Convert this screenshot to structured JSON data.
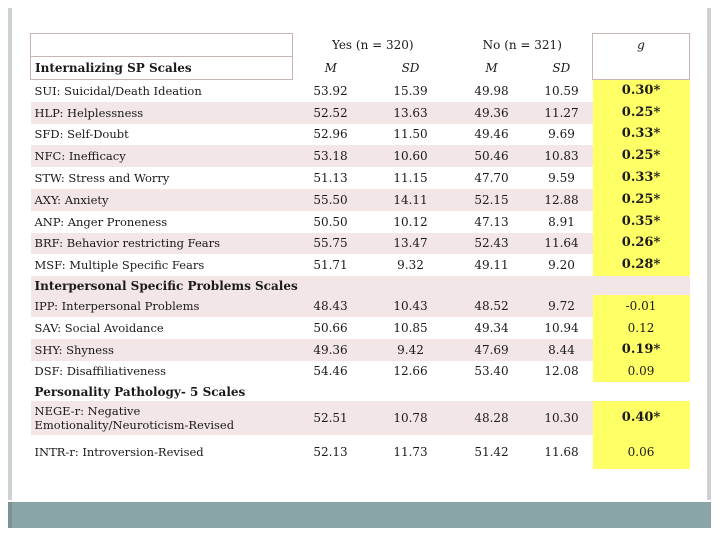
{
  "header": {
    "group_yes": "Yes (n = 320)",
    "group_no": "No (n = 321)",
    "effect": "g",
    "stub_label": "Internalizing SP Scales",
    "col_m": "M",
    "col_sd": "SD"
  },
  "sections": [
    {
      "title": "Internalizing SP Scales",
      "rows": [
        {
          "label": "SUI: Suicidal/Death Ideation",
          "yes_m": "53.92",
          "yes_sd": "15.39",
          "no_m": "49.98",
          "no_sd": "10.59",
          "g": "0.30*",
          "hl": true
        },
        {
          "label": "HLP: Helplessness",
          "yes_m": "52.52",
          "yes_sd": "13.63",
          "no_m": "49.36",
          "no_sd": "11.27",
          "g": "0.25*",
          "hl": true
        },
        {
          "label": "SFD: Self-Doubt",
          "yes_m": "52.96",
          "yes_sd": "11.50",
          "no_m": "49.46",
          "no_sd": "9.69",
          "g": "0.33*",
          "hl": true
        },
        {
          "label": "NFC: Inefficacy",
          "yes_m": "53.18",
          "yes_sd": "10.60",
          "no_m": "50.46",
          "no_sd": "10.83",
          "g": "0.25*",
          "hl": true
        },
        {
          "label": "STW: Stress and Worry",
          "yes_m": "51.13",
          "yes_sd": "11.15",
          "no_m": "47.70",
          "no_sd": "9.59",
          "g": "0.33*",
          "hl": true
        },
        {
          "label": "AXY: Anxiety",
          "yes_m": "55.50",
          "yes_sd": "14.11",
          "no_m": "52.15",
          "no_sd": "12.88",
          "g": "0.25*",
          "hl": true
        },
        {
          "label": "ANP: Anger Proneness",
          "yes_m": "50.50",
          "yes_sd": "10.12",
          "no_m": "47.13",
          "no_sd": "8.91",
          "g": "0.35*",
          "hl": true
        },
        {
          "label": "BRF: Behavior restricting Fears",
          "yes_m": "55.75",
          "yes_sd": "13.47",
          "no_m": "52.43",
          "no_sd": "11.64",
          "g": "0.26*",
          "hl": true
        },
        {
          "label": "MSF: Multiple Specific Fears",
          "yes_m": "51.71",
          "yes_sd": "9.32",
          "no_m": "49.11",
          "no_sd": "9.20",
          "g": "0.28*",
          "hl": true
        }
      ]
    },
    {
      "title": "Interpersonal Specific Problems Scales",
      "rows": [
        {
          "label": "IPP: Interpersonal Problems",
          "yes_m": "48.43",
          "yes_sd": "10.43",
          "no_m": "48.52",
          "no_sd": "9.72",
          "g": "-0.01",
          "hl": true
        },
        {
          "label": "SAV: Social Avoidance",
          "yes_m": "50.66",
          "yes_sd": "10.85",
          "no_m": "49.34",
          "no_sd": "10.94",
          "g": "0.12",
          "hl": true
        },
        {
          "label": "SHY: Shyness",
          "yes_m": "49.36",
          "yes_sd": "9.42",
          "no_m": "47.69",
          "no_sd": "8.44",
          "g": "0.19*",
          "hl": true
        },
        {
          "label": "DSF: Disaffiliativeness",
          "yes_m": "54.46",
          "yes_sd": "12.66",
          "no_m": "53.40",
          "no_sd": "12.08",
          "g": "0.09",
          "hl": true
        }
      ]
    },
    {
      "title": "Personality Pathology- 5 Scales",
      "rows": [
        {
          "label": "NEGE-r: Negative Emotionality/Neuroticism-Revised",
          "yes_m": "52.51",
          "yes_sd": "10.78",
          "no_m": "48.28",
          "no_sd": "10.30",
          "g": "0.40*",
          "hl": true
        },
        {
          "label": "INTR-r: Introversion-Revised",
          "yes_m": "52.13",
          "yes_sd": "11.73",
          "no_m": "51.42",
          "no_sd": "11.68",
          "g": "0.06",
          "hl": true
        }
      ]
    }
  ],
  "colors": {
    "highlight": "#ffff66",
    "row_tint": "#f2e6e6",
    "frame": "#8aa5a5"
  }
}
